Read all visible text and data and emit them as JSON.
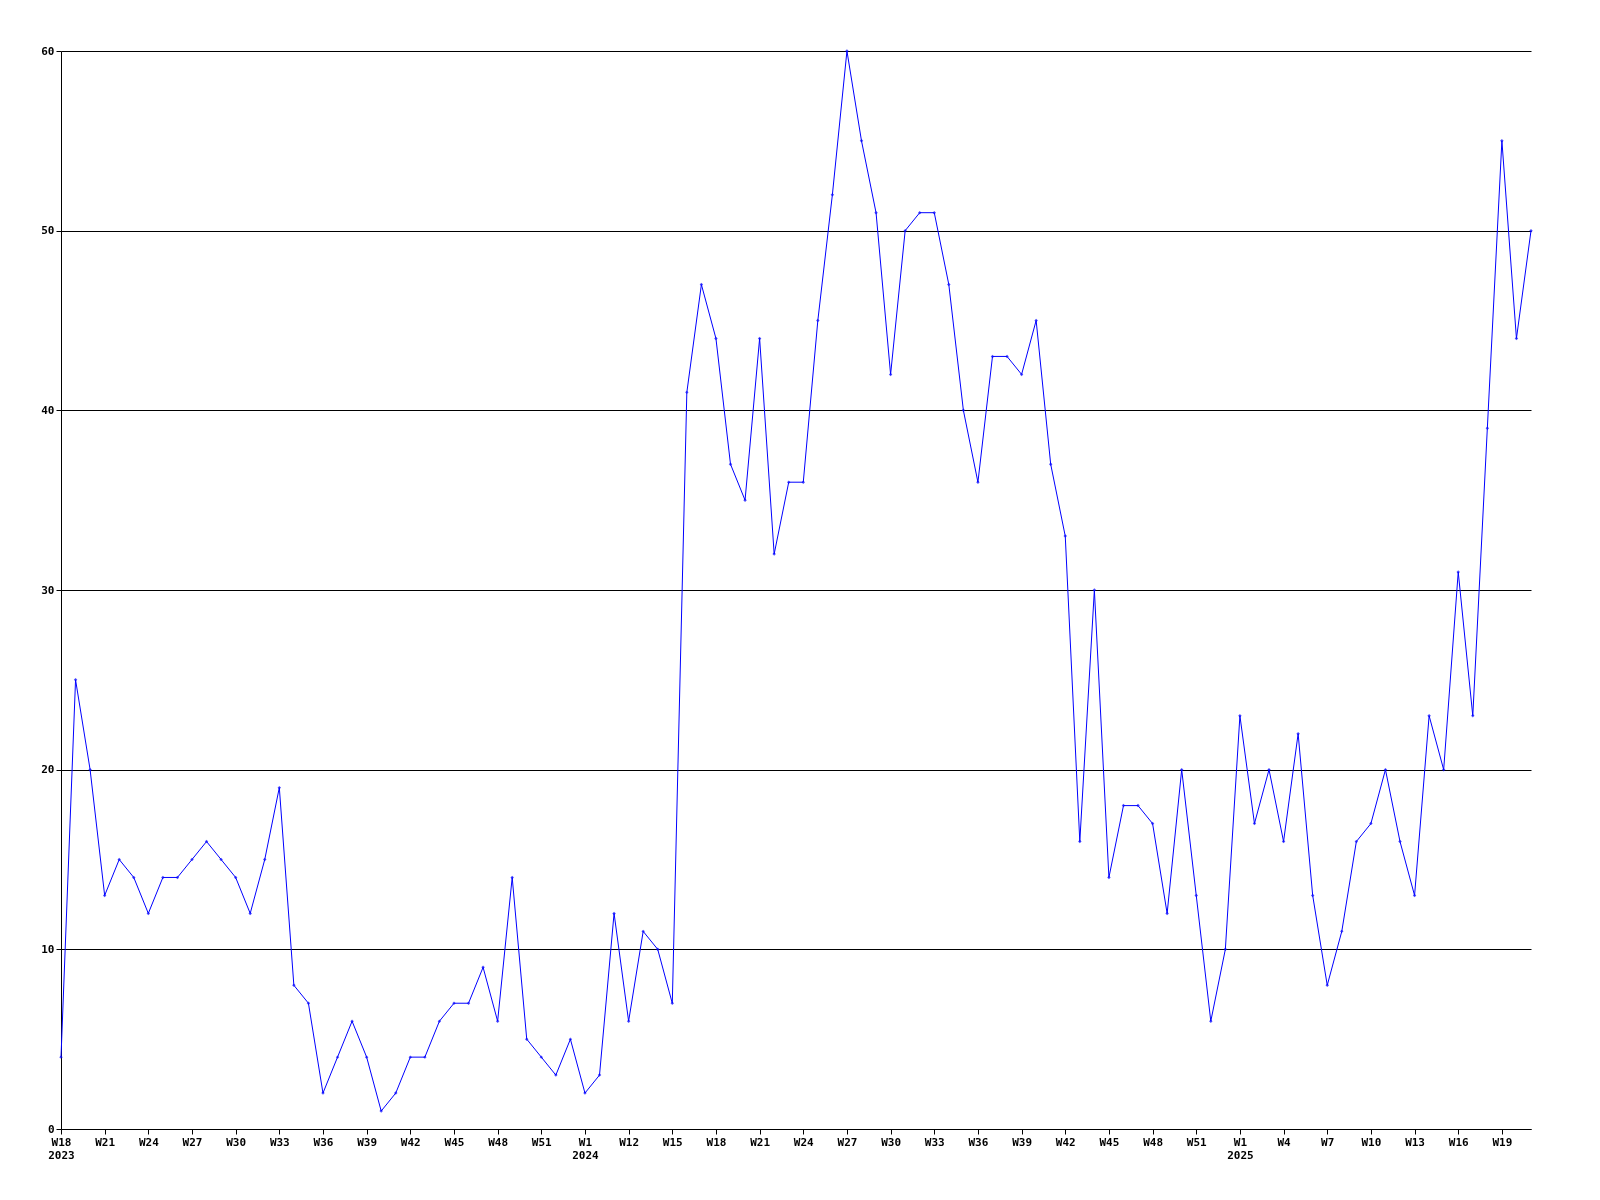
{
  "chart_data": {
    "type": "line",
    "categories": [
      "W18\n2023",
      null,
      null,
      "W21",
      null,
      null,
      "W24",
      null,
      null,
      "W27",
      null,
      null,
      "W30",
      null,
      null,
      "W33",
      null,
      null,
      "W36",
      null,
      null,
      "W39",
      null,
      null,
      "W42",
      null,
      null,
      "W45",
      null,
      null,
      "W48",
      null,
      null,
      "W51",
      null,
      null,
      "W1\n2024",
      null,
      null,
      "W12",
      null,
      null,
      "W15",
      null,
      null,
      "W18",
      null,
      null,
      "W21",
      null,
      null,
      "W24",
      null,
      null,
      "W27",
      null,
      null,
      "W30",
      null,
      null,
      "W33",
      null,
      null,
      "W36",
      null,
      null,
      "W39",
      null,
      null,
      "W42",
      null,
      null,
      "W45",
      null,
      null,
      "W48",
      null,
      null,
      "W51",
      null,
      null,
      "W1\n2025",
      null,
      null,
      "W4",
      null,
      null,
      "W7",
      null,
      null,
      "W10",
      null,
      null,
      "W13",
      null,
      null,
      "W16",
      null,
      null,
      "W19",
      null,
      null
    ],
    "series": [
      {
        "color": "#0000ff",
        "values": [
          4,
          25,
          20,
          13,
          15,
          14,
          12,
          14,
          14,
          15,
          16,
          15,
          14,
          12,
          15,
          19,
          8,
          7,
          2,
          4,
          6,
          4,
          1,
          2,
          4,
          4,
          6,
          7,
          7,
          9,
          6,
          14,
          5,
          4,
          3,
          5,
          2,
          3,
          12,
          6,
          11,
          10,
          7,
          41,
          47,
          44,
          37,
          35,
          44,
          32,
          36,
          36,
          45,
          52,
          60,
          55,
          51,
          42,
          50,
          51,
          51,
          47,
          40,
          36,
          43,
          43,
          42,
          45,
          37,
          33,
          16,
          30,
          14,
          18,
          18,
          17,
          12,
          20,
          13,
          6,
          10,
          23,
          17,
          20,
          16,
          22,
          13,
          8,
          11,
          16,
          17,
          20,
          16,
          13,
          23,
          20,
          31,
          23,
          39,
          55,
          44,
          50
        ]
      }
    ],
    "ylim": [
      0,
      60
    ],
    "yticks": [
      0,
      10,
      20,
      30,
      40,
      50,
      60
    ],
    "grid": "y",
    "marker": "diamond",
    "line_style": "solid"
  }
}
